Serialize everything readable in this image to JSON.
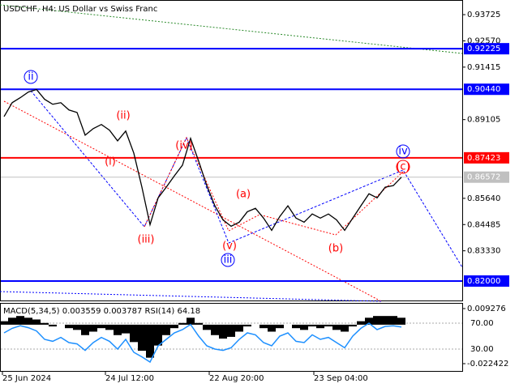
{
  "chart_data": [
    {
      "type": "price",
      "title": "USDCHF, H4:  US Dollar vs Swiss Franc",
      "color": "#000000",
      "values": [
        0.8924,
        0.8985,
        0.9007,
        0.9032,
        0.9043,
        0.9,
        0.8978,
        0.8985,
        0.8953,
        0.8942,
        0.8842,
        0.8871,
        0.8889,
        0.8864,
        0.8817,
        0.886,
        0.8763,
        0.8613,
        0.8448,
        0.8566,
        0.8613,
        0.8663,
        0.871,
        0.8828,
        0.8727,
        0.862,
        0.8531,
        0.8469,
        0.8441,
        0.8459,
        0.8505,
        0.852,
        0.8477,
        0.8423,
        0.8484,
        0.8531,
        0.8477,
        0.8459,
        0.8495,
        0.8477,
        0.8495,
        0.8469,
        0.8423,
        0.8477,
        0.8531,
        0.8584,
        0.8566,
        0.8613,
        0.862,
        0.8657
      ],
      "ylim": [
        0.81108,
        0.94334
      ],
      "yticks": [
        0.93725,
        {
          "value": 0.9257,
          "label": "0.92570"
        },
        0.91415,
        0.89105,
        {
          "value": 0.8564,
          "label": "0.85640"
        },
        0.84485,
        {
          "value": 0.8333,
          "label": "0.83330"
        }
      ],
      "levels": [
        {
          "value": 0.92225,
          "color": "#0000ff"
        },
        {
          "value": 0.9044,
          "label": "0.90440",
          "color": "#0000ff"
        },
        {
          "value": 0.87423,
          "color": "#ff0000"
        },
        {
          "value": 0.86572,
          "color": "#c0c0c0"
        },
        {
          "value": 0.82,
          "label": "0.82000",
          "color": "#0000ff"
        }
      ],
      "annotations": [
        "ii",
        "(ii)",
        "(i)",
        "(iii)",
        "(iv)",
        "(v)",
        "iii",
        "(a)",
        "(b)",
        "(c)",
        "iv"
      ],
      "x_labels": [
        "25 Jun 2024",
        "24 Jul 12:00",
        "22 Aug 20:00",
        "23 Sep 04:00"
      ]
    },
    {
      "type": "macd",
      "title": "MACD(5,34,5) 0.003559 0.003787 RSI(14) 64.18",
      "color": "#000000",
      "values": [
        0.002,
        0.004,
        0.005,
        0.004,
        0.003,
        0.001,
        -0.001,
        0,
        -0.002,
        -0.003,
        -0.006,
        -0.004,
        -0.002,
        -0.003,
        -0.006,
        -0.005,
        -0.01,
        -0.015,
        -0.019,
        -0.012,
        -0.006,
        -0.002,
        0.001,
        0.004,
        0.001,
        -0.003,
        -0.006,
        -0.008,
        -0.007,
        -0.004,
        -0.001,
        0,
        -0.002,
        -0.004,
        -0.002,
        0,
        -0.002,
        -0.003,
        -0.001,
        -0.002,
        -0.001,
        -0.003,
        -0.004,
        -0.001,
        0.002,
        0.004,
        0.005,
        0.005,
        0.005,
        0.004
      ],
      "ylim": [
        -0.02662,
        0.01207
      ],
      "yticks": [
        0.009276,
        -0.022422
      ],
      "rsi": {
        "color": "#1e90ff",
        "values": [
          55,
          62,
          66,
          63,
          58,
          45,
          42,
          48,
          40,
          38,
          28,
          40,
          48,
          42,
          30,
          45,
          25,
          18,
          10,
          35,
          45,
          55,
          60,
          68,
          50,
          35,
          30,
          28,
          32,
          45,
          55,
          52,
          40,
          35,
          50,
          55,
          42,
          40,
          52,
          45,
          48,
          40,
          32,
          50,
          62,
          70,
          60,
          65,
          66,
          64
        ],
        "ylim": [
          -3.75,
          100
        ],
        "yticks": [
          {
            "value": 70,
            "label": "70.00"
          },
          {
            "value": 30,
            "label": "30.00"
          }
        ]
      }
    }
  ]
}
